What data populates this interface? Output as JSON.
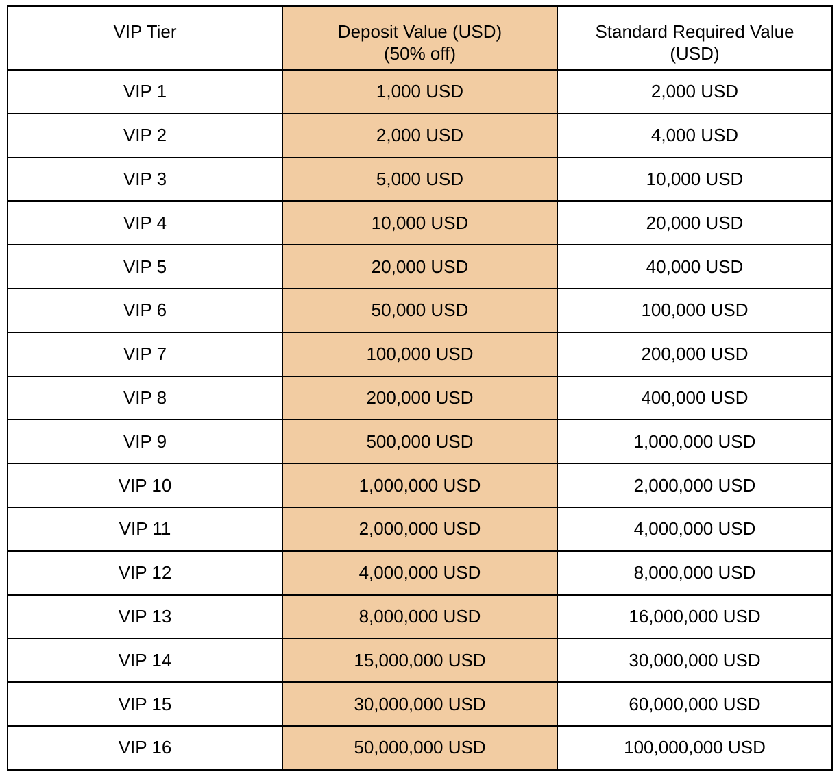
{
  "table": {
    "headers": [
      "VIP Tier",
      "Deposit Value (USD)\n(50% off)",
      "Standard Required Value (USD)"
    ],
    "highlight_color": "#f2cca2",
    "rows": [
      [
        "VIP 1",
        "1,000 USD",
        "2,000 USD"
      ],
      [
        "VIP 2",
        "2,000 USD",
        "4,000 USD"
      ],
      [
        "VIP 3",
        "5,000 USD",
        "10,000 USD"
      ],
      [
        "VIP 4",
        "10,000 USD",
        "20,000 USD"
      ],
      [
        "VIP 5",
        "20,000 USD",
        "40,000 USD"
      ],
      [
        "VIP 6",
        "50,000 USD",
        "100,000 USD"
      ],
      [
        "VIP 7",
        "100,000 USD",
        "200,000 USD"
      ],
      [
        "VIP 8",
        "200,000 USD",
        "400,000 USD"
      ],
      [
        "VIP 9",
        "500,000 USD",
        "1,000,000 USD"
      ],
      [
        "VIP 10",
        "1,000,000 USD",
        "2,000,000 USD"
      ],
      [
        "VIP 11",
        "2,000,000 USD",
        "4,000,000 USD"
      ],
      [
        "VIP 12",
        "4,000,000 USD",
        "8,000,000 USD"
      ],
      [
        "VIP 13",
        "8,000,000 USD",
        "16,000,000 USD"
      ],
      [
        "VIP 14",
        "15,000,000 USD",
        "30,000,000 USD"
      ],
      [
        "VIP 15",
        "30,000,000 USD",
        "60,000,000 USD"
      ],
      [
        "VIP 16",
        "50,000,000 USD",
        "100,000,000 USD"
      ]
    ]
  }
}
